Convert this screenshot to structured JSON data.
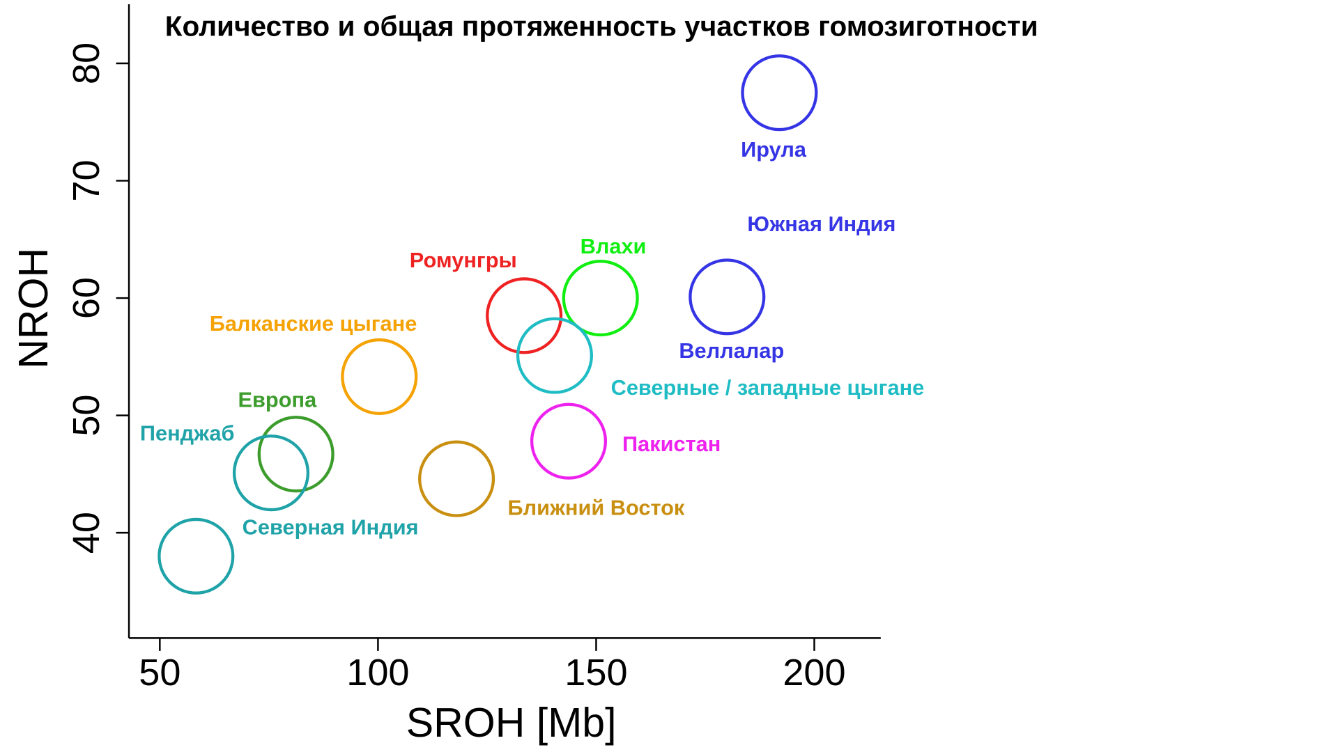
{
  "chart_data": {
    "type": "scatter",
    "title": "Количество и общая протяженность участков гомозиготности",
    "xlabel": "SROH [Mb]",
    "ylabel": "NROH",
    "xlim": [
      43,
      215
    ],
    "ylim": [
      31,
      85
    ],
    "xticks": [
      50,
      100,
      150,
      200
    ],
    "yticks": [
      40,
      50,
      60,
      70,
      80
    ],
    "grid": false,
    "marker": "open-circle",
    "points": [
      {
        "label": "Ирула",
        "x": 192,
        "y": 77.5,
        "color": "#3535e6"
      },
      {
        "label": "Веллалар",
        "x": 180,
        "y": 60.1,
        "color": "#3535e6"
      },
      {
        "label": "Влахи",
        "x": 151,
        "y": 60,
        "color": "#11ee11"
      },
      {
        "label": "Ромунгры",
        "x": 133.5,
        "y": 58.5,
        "color": "#ee2222"
      },
      {
        "label": "Северные / западные цыгане",
        "x": 140.5,
        "y": 55.1,
        "color": "#1fbcc4"
      },
      {
        "label": "Балканские цыгане",
        "x": 100.3,
        "y": 53.3,
        "color": "#f5a205"
      },
      {
        "label": "Пакистан",
        "x": 143.7,
        "y": 47.8,
        "color": "#ee22ee"
      },
      {
        "label": "Европа",
        "x": 81.2,
        "y": 46.7,
        "color": "#3c9c2c"
      },
      {
        "label": "Пенджаб",
        "x": 75.5,
        "y": 45.1,
        "color": "#1fa3a8"
      },
      {
        "label": "Ближний Восток",
        "x": 118,
        "y": 44.6,
        "color": "#c98f10"
      },
      {
        "label": "Северная Индия",
        "x": 58.3,
        "y": 38,
        "color": "#1fa3a8"
      }
    ],
    "annotations": [
      {
        "text": "Южная Индия",
        "color": "#3535e6"
      }
    ]
  }
}
